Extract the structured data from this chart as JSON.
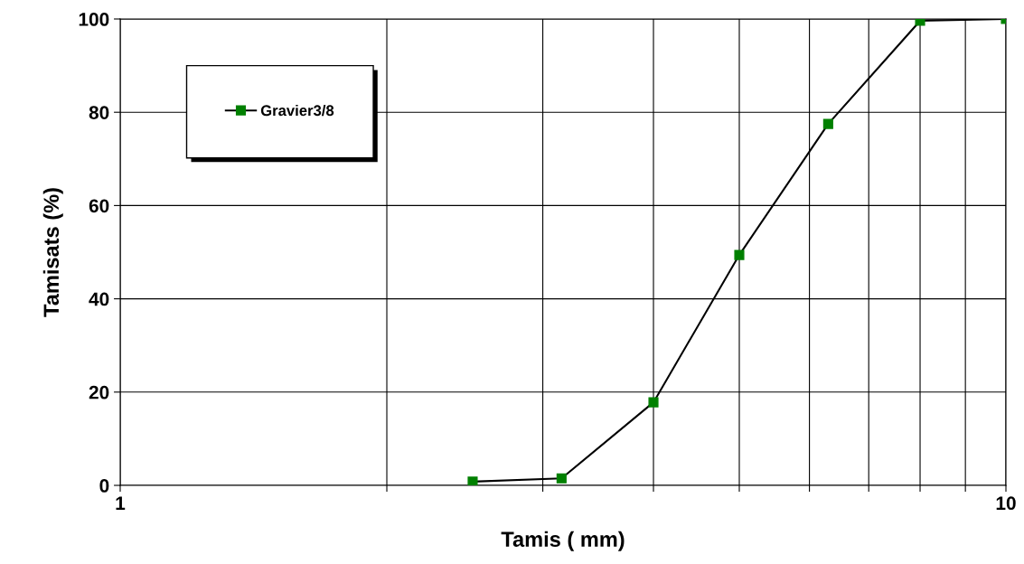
{
  "chart_data": {
    "type": "line",
    "xlabel": "Tamis ( mm)",
    "ylabel": "Tamisats (%)",
    "series": [
      {
        "name": "Gravier3/8",
        "color": "#008000",
        "x": [
          2.5,
          3.15,
          4,
          5,
          6.3,
          8,
          10
        ],
        "values": [
          0.8,
          1.5,
          17.8,
          49.4,
          77.5,
          99.6,
          100
        ]
      }
    ],
    "log": "x",
    "xlim": [
      1,
      10
    ],
    "xticks": [
      1,
      {
        "value": 2,
        "label": null
      },
      {
        "value": 3,
        "label": null
      },
      {
        "value": 4,
        "label": null
      },
      {
        "value": 5,
        "label": null
      },
      {
        "value": 6,
        "label": null
      },
      {
        "value": 7,
        "label": null
      },
      {
        "value": 8,
        "label": null
      },
      {
        "value": 9,
        "label": null
      },
      10
    ],
    "ylim": [
      0,
      100
    ],
    "yticks": [
      0,
      20,
      40,
      60,
      80,
      100
    ],
    "grid": true,
    "legend": "top left",
    "marker": "square",
    "line_style": "solid"
  }
}
